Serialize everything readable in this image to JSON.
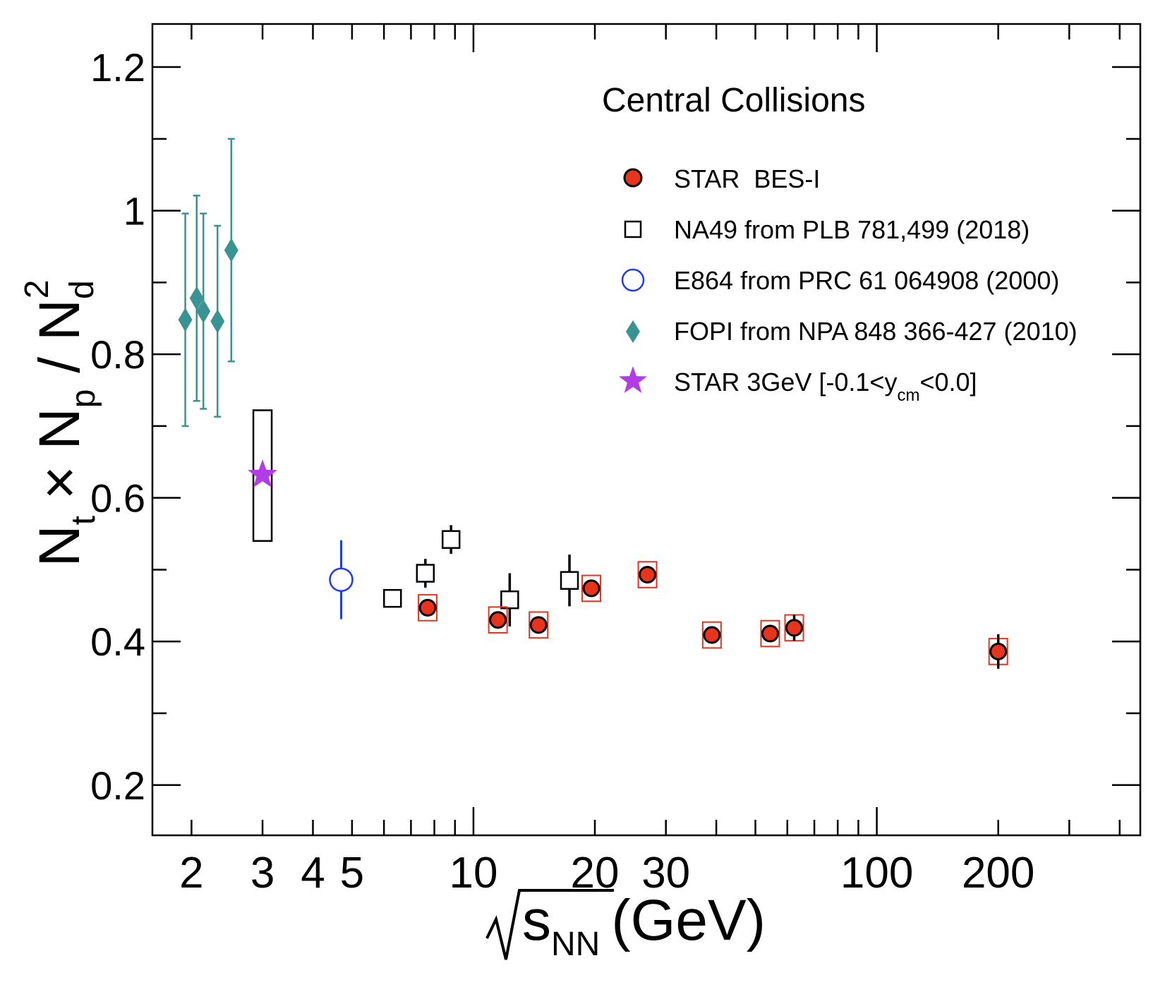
{
  "chart_data": {
    "type": "scatter",
    "title": "",
    "xlabel": {
      "main": "s",
      "sub": "NN",
      "unit": "(GeV)",
      "sqrt": true
    },
    "ylabel": {
      "main": "N",
      "sub1": "t",
      "mid": " × N",
      "sub2": "p",
      "div": " / N",
      "sub3": "d",
      "sup3": "2"
    },
    "x_scale": "log",
    "xlim": [
      1.6,
      450
    ],
    "ylim": [
      0.13,
      1.26
    ],
    "x_ticks": [
      2,
      3,
      4,
      5,
      10,
      20,
      30,
      100,
      200
    ],
    "x_tick_labels": [
      "2",
      "3",
      "4",
      "5",
      "10",
      "20",
      "30",
      "100",
      "200"
    ],
    "y_ticks": [
      0.2,
      0.4,
      0.6,
      0.8,
      1.0,
      1.2
    ],
    "y_tick_labels": [
      "0.2",
      "0.4",
      "0.6",
      "0.8",
      "1",
      "1.2"
    ],
    "annotation": "Central Collisions",
    "legend_position": "top-right",
    "colors": {
      "star_bes": "#e8341c",
      "na49": "#000000",
      "e864": "#1f3ce6",
      "fopi": "#3a9393",
      "star3": "#b23ce6",
      "sys_box": "#e8341c"
    },
    "series": [
      {
        "name": "STAR  BES-I",
        "marker": "filled-circle",
        "points": [
          {
            "x": 7.7,
            "y": 0.447,
            "err": 0.01,
            "sys": 0.018
          },
          {
            "x": 11.5,
            "y": 0.43,
            "err": 0.01,
            "sys": 0.018
          },
          {
            "x": 14.5,
            "y": 0.423,
            "err": 0.01,
            "sys": 0.018
          },
          {
            "x": 19.6,
            "y": 0.474,
            "err": 0.01,
            "sys": 0.018
          },
          {
            "x": 27,
            "y": 0.493,
            "err": 0.01,
            "sys": 0.018
          },
          {
            "x": 39,
            "y": 0.409,
            "err": 0.01,
            "sys": 0.018
          },
          {
            "x": 54.4,
            "y": 0.411,
            "err": 0.01,
            "sys": 0.018
          },
          {
            "x": 62.4,
            "y": 0.419,
            "err": 0.018,
            "sys": 0.018
          },
          {
            "x": 200,
            "y": 0.386,
            "err": 0.024,
            "sys": 0.018
          }
        ]
      },
      {
        "name": "NA49 from PLB 781,499 (2018)",
        "marker": "open-square",
        "points": [
          {
            "x": 6.3,
            "y": 0.46,
            "err": 0.012
          },
          {
            "x": 7.6,
            "y": 0.495,
            "err": 0.02
          },
          {
            "x": 8.8,
            "y": 0.542,
            "err": 0.02
          },
          {
            "x": 12.3,
            "y": 0.458,
            "err": 0.037
          },
          {
            "x": 17.3,
            "y": 0.485,
            "err": 0.036
          }
        ]
      },
      {
        "name": "E864 from PRC 61 064908 (2000)",
        "marker": "open-circle",
        "points": [
          {
            "x": 4.7,
            "y": 0.486,
            "err": 0.055
          }
        ]
      },
      {
        "name": "FOPI from NPA 848 366-427 (2010)",
        "marker": "diamond",
        "points": [
          {
            "x": 1.93,
            "y": 0.848,
            "err": 0.148
          },
          {
            "x": 2.06,
            "y": 0.878,
            "err": 0.143
          },
          {
            "x": 2.14,
            "y": 0.86,
            "err": 0.136
          },
          {
            "x": 2.32,
            "y": 0.846,
            "err": 0.133
          },
          {
            "x": 2.51,
            "y": 0.945,
            "err": 0.155
          }
        ]
      },
      {
        "name": "STAR 3GeV [-0.1<y",
        "name_sub": "cm",
        "name_tail": "<0.0]",
        "marker": "star",
        "points": [
          {
            "x": 3.0,
            "y": 0.632,
            "sys_low": 0.54,
            "sys_high": 0.722
          }
        ]
      }
    ]
  }
}
